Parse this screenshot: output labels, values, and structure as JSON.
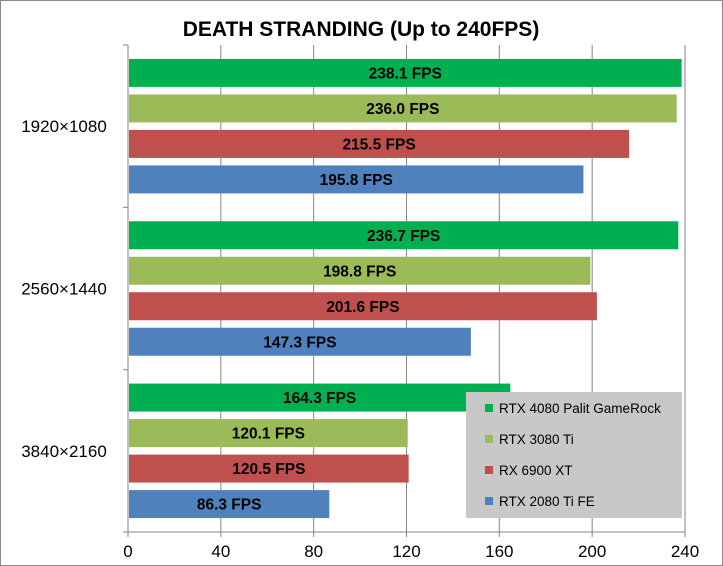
{
  "chart_data": {
    "type": "bar",
    "orientation": "horizontal",
    "title": "DEATH STRANDING (Up to 240FPS)",
    "categories": [
      "1920×1080",
      "2560×1440",
      "3840×2160"
    ],
    "series": [
      {
        "name": "RTX 4080 Palit GameRock",
        "color": "#00b050",
        "values": [
          238.1,
          236.7,
          164.3
        ],
        "labels": [
          "238.1 FPS",
          "236.7 FPS",
          "164.3 FPS"
        ]
      },
      {
        "name": "RTX 3080 Ti",
        "color": "#9bbb59",
        "values": [
          236.0,
          198.8,
          120.1
        ],
        "labels": [
          "236.0 FPS",
          "198.8 FPS",
          "120.1 FPS"
        ]
      },
      {
        "name": "RX 6900 XT",
        "color": "#c0504d",
        "values": [
          215.5,
          201.6,
          120.5
        ],
        "labels": [
          "215.5 FPS",
          "201.6 FPS",
          "120.5 FPS"
        ]
      },
      {
        "name": "RTX 2080 Ti FE",
        "color": "#4f81bd",
        "values": [
          195.8,
          147.3,
          86.3
        ],
        "labels": [
          "195.8 FPS",
          "147.3 FPS",
          "86.3 FPS"
        ]
      }
    ],
    "xlim": [
      0,
      240
    ],
    "xticks": [
      0,
      40,
      80,
      120,
      160,
      200,
      240
    ],
    "grid": true,
    "legend_position": "bottom-right"
  }
}
